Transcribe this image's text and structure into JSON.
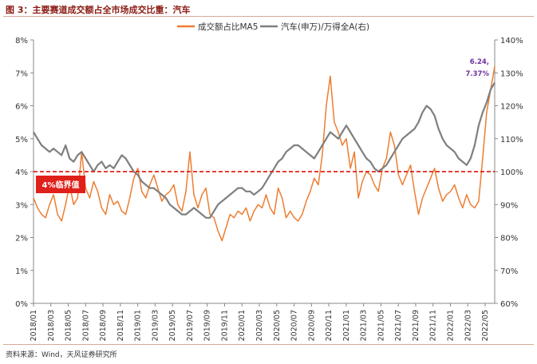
{
  "figure_title": "图 3：主要赛道成交额占全市场成交比重：汽车",
  "source_note": "资料来源：Wind，天风证券研究所",
  "colors": {
    "orange": "#ED7D31",
    "gray": "#7F7F7F",
    "red_line": "#E0201A",
    "label_bg": "#E0201A",
    "annot": "#7030A0",
    "rule": "#C8A89A"
  },
  "chart_data": {
    "type": "line",
    "legend_position": "top-center",
    "grid": false,
    "x_tick_labels": [
      "2018/01",
      "2018/03",
      "2018/05",
      "2018/07",
      "2018/09",
      "2018/11",
      "2019/01",
      "2019/03",
      "2019/05",
      "2019/07",
      "2019/09",
      "2019/11",
      "2020/01",
      "2020/03",
      "2020/05",
      "2020/07",
      "2020/09",
      "2020/11",
      "2021/01",
      "2021/03",
      "2021/05",
      "2021/07",
      "2021/09",
      "2021/11",
      "2022/01",
      "2022/03",
      "2022/05"
    ],
    "y_left": {
      "min": 0,
      "max": 8,
      "ticks": [
        "0%",
        "1%",
        "2%",
        "3%",
        "4%",
        "5%",
        "6%",
        "7%",
        "8%"
      ]
    },
    "y_right": {
      "min": 60,
      "max": 140,
      "ticks": [
        "60%",
        "70%",
        "80%",
        "90%",
        "100%",
        "110%",
        "120%",
        "130%",
        "140%"
      ]
    },
    "threshold": {
      "value": 4,
      "axis": "left",
      "label": "4%临界值"
    },
    "annotation": {
      "line1": "6.24,",
      "line2": "7.37%"
    },
    "series": [
      {
        "name": "成交额占比MA5",
        "axis": "left",
        "color": "#ED7D31",
        "values": [
          3.2,
          2.9,
          2.7,
          2.6,
          3.0,
          3.3,
          2.7,
          2.5,
          3.0,
          3.6,
          3.0,
          3.2,
          4.6,
          3.5,
          3.2,
          3.7,
          3.4,
          2.9,
          2.7,
          3.3,
          3.0,
          3.1,
          2.8,
          2.7,
          3.2,
          3.8,
          4.1,
          3.4,
          3.2,
          3.6,
          3.9,
          3.5,
          3.1,
          3.3,
          3.4,
          3.6,
          3.0,
          2.8,
          3.4,
          4.6,
          3.3,
          2.9,
          3.3,
          3.5,
          2.7,
          2.6,
          2.2,
          1.9,
          2.3,
          2.7,
          2.6,
          2.8,
          2.7,
          2.9,
          2.5,
          2.8,
          3.0,
          2.9,
          3.3,
          2.9,
          2.7,
          3.5,
          3.2,
          2.6,
          2.8,
          2.6,
          2.5,
          2.7,
          3.1,
          3.4,
          3.8,
          3.6,
          4.5,
          6.0,
          6.9,
          5.5,
          5.2,
          4.8,
          5.0,
          4.1,
          4.6,
          3.2,
          3.7,
          4.0,
          3.9,
          3.6,
          3.4,
          4.1,
          4.4,
          5.2,
          4.8,
          3.9,
          3.6,
          3.9,
          4.2,
          3.4,
          2.7,
          3.2,
          3.5,
          3.8,
          4.1,
          3.5,
          3.1,
          3.3,
          3.4,
          3.6,
          3.2,
          2.9,
          3.3,
          3.0,
          2.9,
          3.1,
          4.4,
          5.8,
          6.5,
          7.2
        ]
      },
      {
        "name": "汽车(申万)/万得全A(右)",
        "axis": "right",
        "color": "#7F7F7F",
        "values": [
          112,
          110,
          108,
          107,
          106,
          107,
          106,
          105,
          108,
          104,
          103,
          105,
          106,
          104,
          102,
          100,
          102,
          103,
          101,
          102,
          101,
          103,
          105,
          104,
          102,
          100,
          99,
          97,
          96,
          95,
          95,
          94,
          93,
          92,
          90,
          89,
          88,
          87,
          87,
          88,
          89,
          88,
          87,
          86,
          86,
          88,
          90,
          91,
          92,
          93,
          94,
          95,
          95,
          94,
          94,
          93,
          94,
          95,
          97,
          99,
          101,
          103,
          104,
          106,
          107,
          108,
          108,
          107,
          106,
          105,
          104,
          106,
          108,
          110,
          112,
          111,
          110,
          112,
          114,
          112,
          110,
          108,
          106,
          104,
          103,
          101,
          100,
          101,
          102,
          104,
          106,
          108,
          110,
          111,
          112,
          113,
          115,
          118,
          120,
          119,
          117,
          113,
          110,
          108,
          107,
          106,
          104,
          103,
          102,
          104,
          108,
          114,
          118,
          121,
          125,
          127
        ]
      }
    ]
  }
}
